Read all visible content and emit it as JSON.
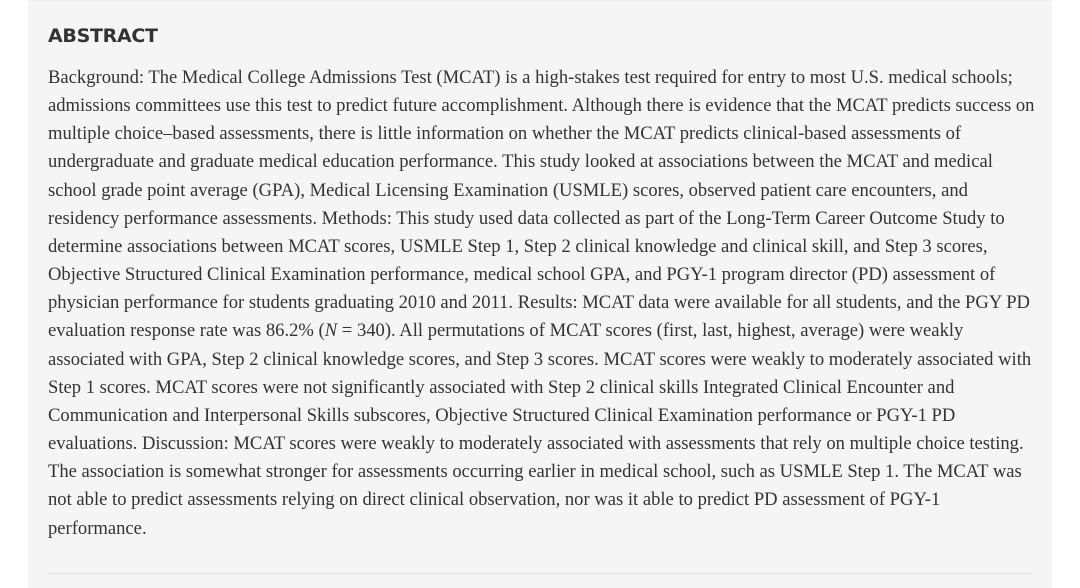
{
  "abstract": {
    "heading": "ABSTRACT",
    "text_before_n": "Background: The Medical College Admissions Test (MCAT) is a high-stakes test required for entry to most U.S. medical schools; admissions committees use this test to predict future accomplishment. Although there is evidence that the MCAT predicts success on multiple choice–based assessments, there is little information on whether the MCAT predicts clinical-based assessments of undergraduate and graduate medical education performance. This study looked at associations between the MCAT and medical school grade point average (GPA), Medical Licensing Examination (USMLE) scores, observed patient care encounters, and residency performance assessments. Methods: This study used data collected as part of the Long-Term Career Outcome Study to determine associations between MCAT scores, USMLE Step 1, Step 2 clinical knowledge and clinical skill, and Step 3 scores, Objective Structured Clinical Examination performance, medical school GPA, and PGY-1 program director (PD) assessment of physician performance for students graduating 2010 and 2011. Results: MCAT data were available for all students, and the PGY PD evaluation response rate was 86.2% (",
    "n_symbol": "N",
    "text_after_n": " = 340). All permutations of MCAT scores (first, last, highest, average) were weakly associated with GPA, Step 2 clinical knowledge scores, and Step 3 scores. MCAT scores were weakly to moderately associated with Step 1 scores. MCAT scores were not significantly associated with Step 2 clinical skills Integrated Clinical Encounter and Communication and Interpersonal Skills subscores, Objective Structured Clinical Examination performance or PGY-1 PD evaluations. Discussion: MCAT scores were weakly to moderately associated with assessments that rely on multiple choice testing. The association is somewhat stronger for assessments occurring earlier in medical school, such as USMLE Step 1. The MCAT was not able to predict assessments relying on direct clinical observation, nor was it able to predict PD assessment of PGY-1 performance."
  },
  "colors": {
    "panel_background": "#f5f5f5",
    "text": "#333333",
    "divider": "#dedede"
  }
}
